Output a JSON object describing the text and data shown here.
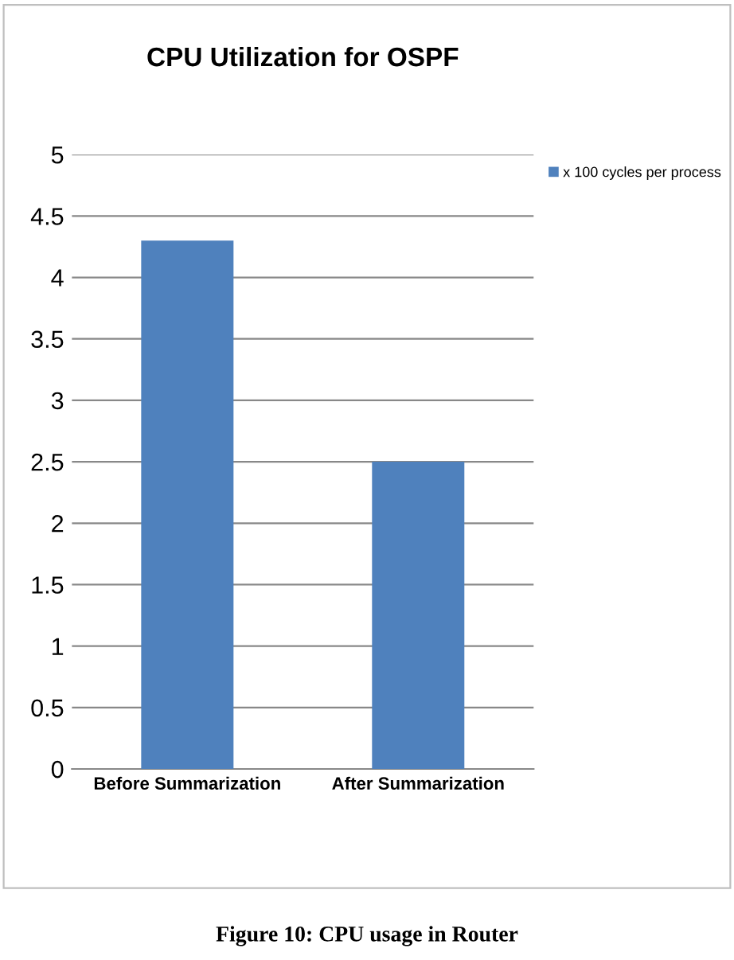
{
  "chart_data": {
    "type": "bar",
    "title": "CPU Utilization for OSPF",
    "categories": [
      "Before Summarization",
      "After Summarization"
    ],
    "series": [
      {
        "name": "x 100 cycles per process",
        "color": "#4f81bd",
        "values": [
          4.3,
          2.5
        ]
      }
    ],
    "ylim": [
      0,
      5
    ],
    "yticks": [
      0,
      0.5,
      1,
      1.5,
      2,
      2.5,
      3,
      3.5,
      4,
      4.5,
      5
    ],
    "grid": "y",
    "legend": "top right",
    "annotations": [
      "Figure 10: CPU usage in Router"
    ]
  }
}
